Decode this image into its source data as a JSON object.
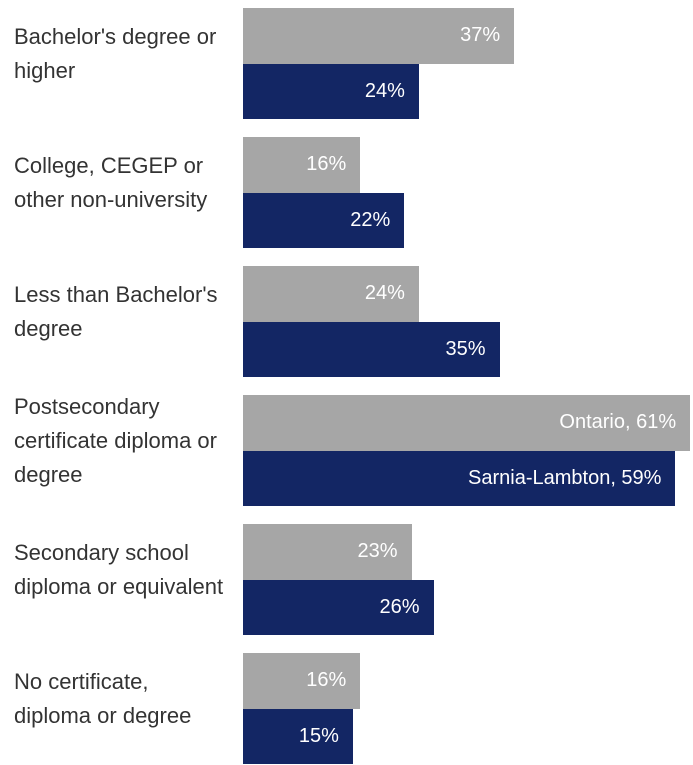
{
  "chart_data": {
    "type": "bar",
    "orientation": "horizontal",
    "categories": [
      "Bachelor's degree or higher",
      "College, CEGEP or other non-university",
      "Less than Bachelor's degree",
      "Postsecondary certificate diploma or degree",
      "Secondary school diploma or equivalent",
      "No certificate, diploma or degree"
    ],
    "series": [
      {
        "name": "Ontario",
        "color": "#a6a6a6",
        "values": [
          37,
          16,
          24,
          61,
          23,
          16
        ],
        "value_labels": [
          "37%",
          "16%",
          "24%",
          "Ontario, 61%",
          "23%",
          "16%"
        ]
      },
      {
        "name": "Sarnia-Lambton",
        "color": "#132664",
        "values": [
          24,
          22,
          35,
          59,
          26,
          15
        ],
        "value_labels": [
          "24%",
          "22%",
          "35%",
          "Sarnia-Lambton, 59%",
          "26%",
          "15%"
        ]
      }
    ]
  }
}
